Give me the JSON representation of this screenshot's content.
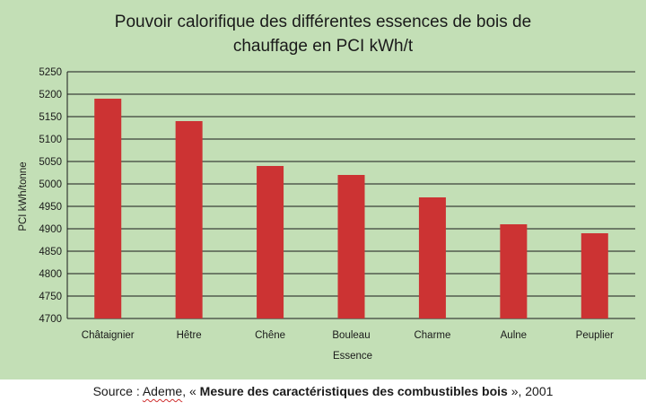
{
  "chart_data": {
    "type": "bar",
    "title_lines": [
      "Pouvoir calorifique des différentes essences de bois de",
      "chauffage en PCI kWh/t"
    ],
    "xlabel": "Essence",
    "ylabel": "PCI kWh/tonne",
    "categories": [
      "Châtaignier",
      "Hêtre",
      "Chêne",
      "Bouleau",
      "Charme",
      "Aulne",
      "Peuplier"
    ],
    "values": [
      5190,
      5140,
      5040,
      5020,
      4970,
      4910,
      4890
    ],
    "ylim": [
      4700,
      5250
    ],
    "yticks": [
      4700,
      4750,
      4800,
      4850,
      4900,
      4950,
      5000,
      5050,
      5100,
      5150,
      5200,
      5250
    ],
    "grid": true,
    "legend": "none",
    "bar_color": "#cc3333",
    "background_color": "#c3dfb6"
  },
  "source": {
    "prefix": "Source : ",
    "organisation": "Ademe",
    "separator": ", « ",
    "document": "Mesure des caractéristiques des combustibles bois",
    "suffix": " », 2001"
  }
}
